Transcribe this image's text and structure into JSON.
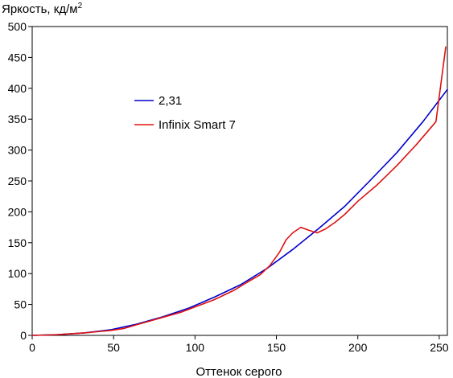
{
  "chart_data": {
    "type": "line",
    "ylabel": "Яркость, кд/м",
    "ylabel_sup": "2",
    "xlabel": "Оттенок серого",
    "xlim": [
      0,
      255
    ],
    "ylim": [
      0,
      500
    ],
    "x_ticks": [
      0,
      50,
      100,
      150,
      200,
      250
    ],
    "y_ticks": [
      0,
      50,
      100,
      150,
      200,
      250,
      300,
      350,
      400,
      450,
      500
    ],
    "grid": false,
    "legend_position": "upper-left-inside",
    "series": [
      {
        "name": "2,31",
        "color": "#0000cc",
        "x": [
          0,
          16,
          32,
          48,
          64,
          80,
          96,
          112,
          128,
          144,
          160,
          176,
          192,
          208,
          224,
          240,
          255
        ],
        "y": [
          0,
          1.2,
          4,
          9,
          18,
          30,
          44,
          62,
          82,
          108,
          139,
          173,
          209,
          252,
          296,
          346,
          398
        ]
      },
      {
        "name": "Infinix Smart 7",
        "color": "#dd1111",
        "x": [
          0,
          15,
          32,
          48,
          56,
          64,
          80,
          92,
          104,
          112,
          124,
          132,
          140,
          146,
          152,
          156,
          160,
          165,
          170,
          175,
          180,
          186,
          192,
          200,
          212,
          224,
          236,
          248,
          254
        ],
        "y": [
          0,
          1,
          4,
          8,
          11,
          17,
          29,
          38,
          50,
          58,
          73,
          86,
          98,
          113,
          135,
          155,
          166,
          175,
          170,
          166,
          172,
          183,
          196,
          217,
          244,
          275,
          309,
          346,
          467
        ]
      }
    ]
  }
}
